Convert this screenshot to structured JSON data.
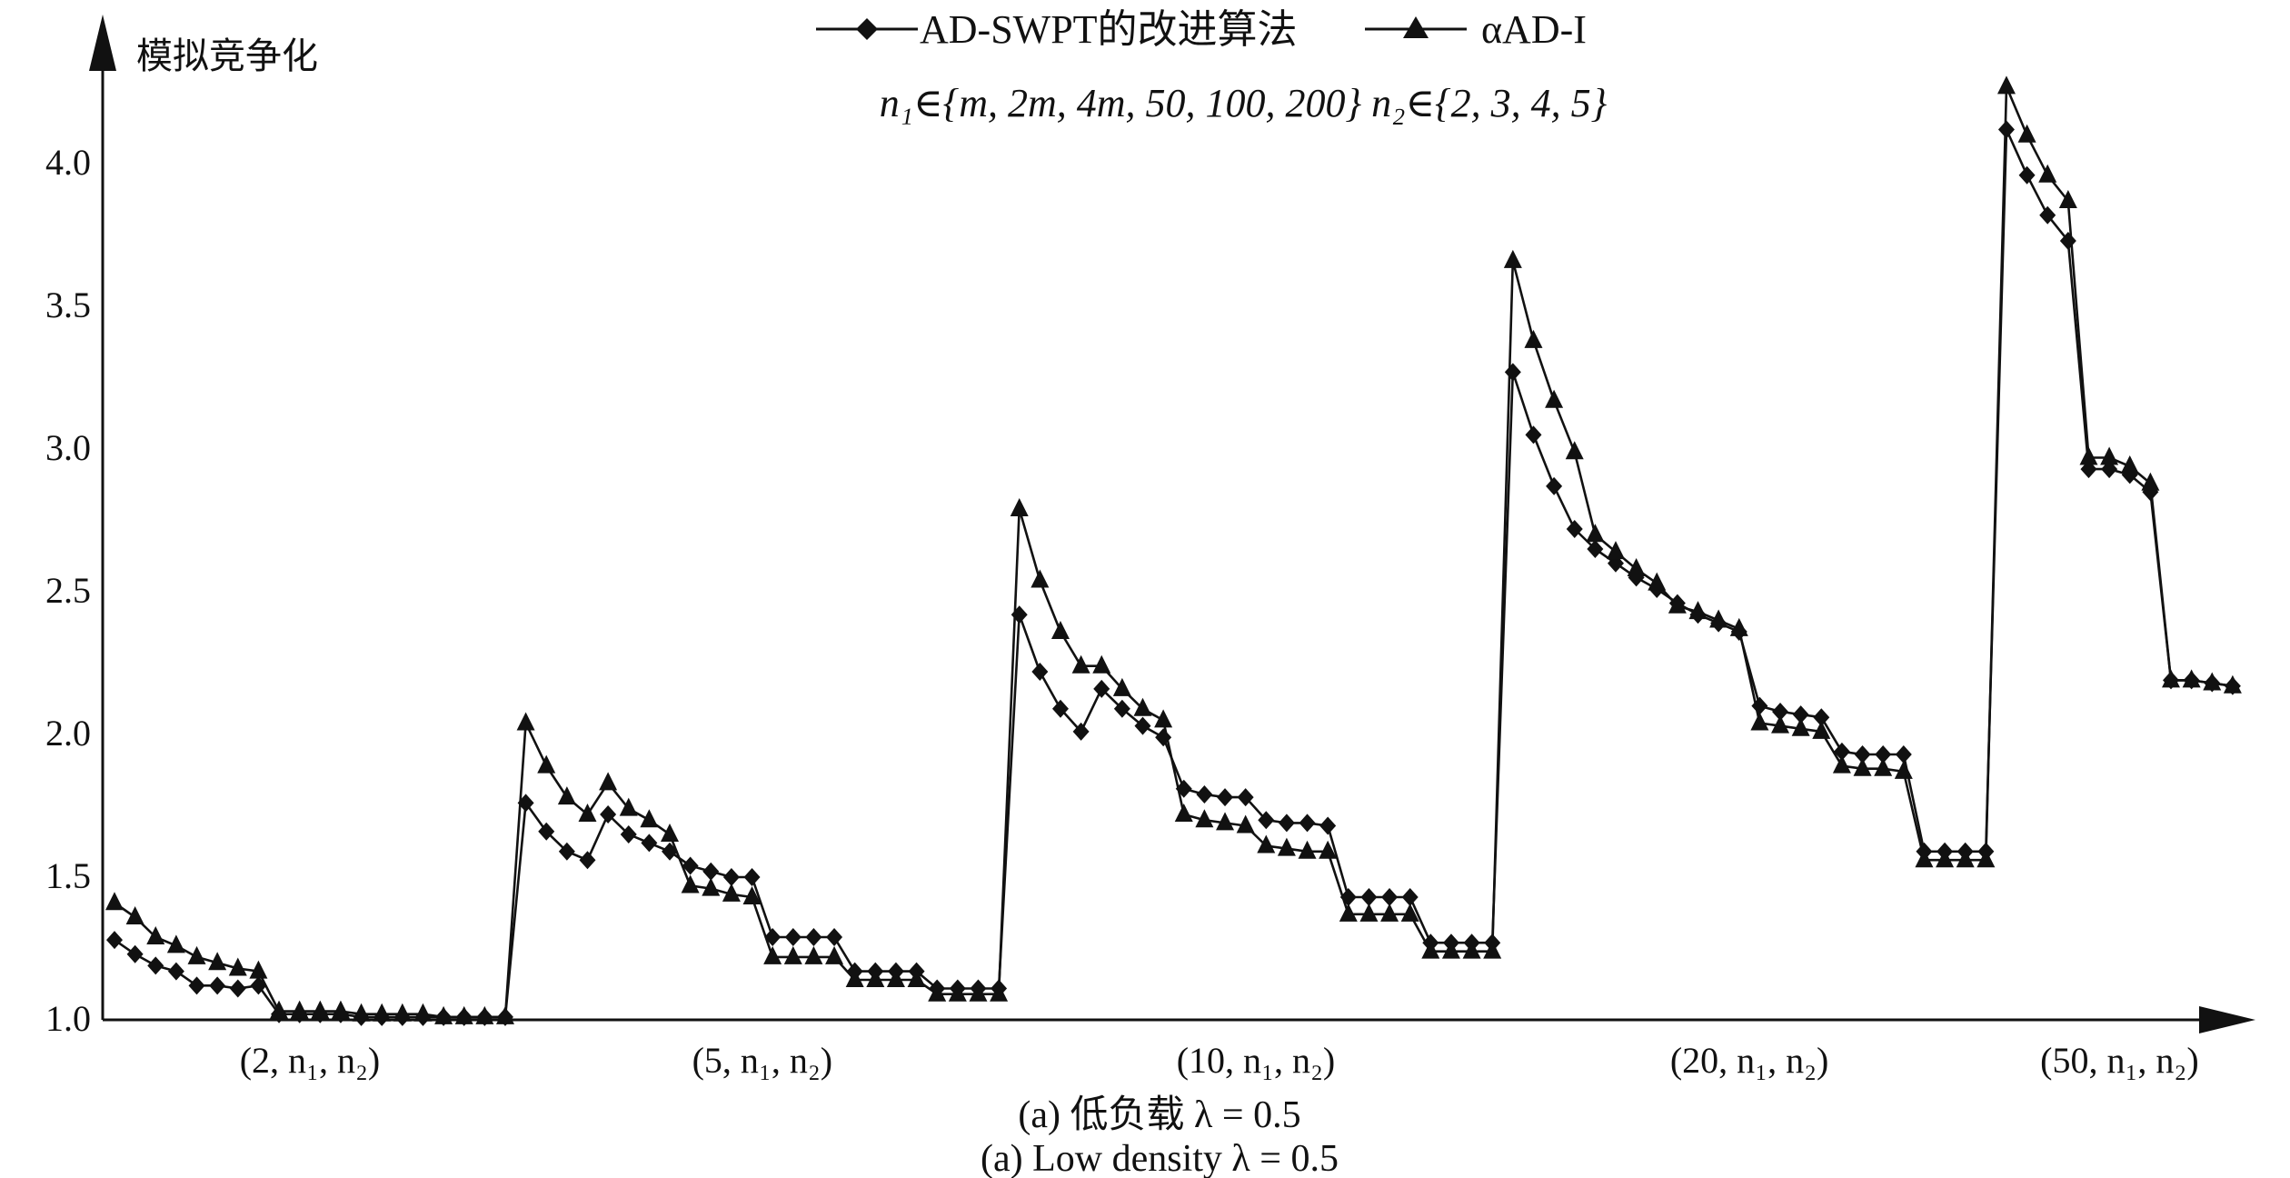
{
  "chart_data": {
    "type": "line",
    "ylabel": "模拟竞争化",
    "subtitle": "n₁∈{m, 2m, 4m, 50, 100, 200}   n₂∈{2, 3, 4, 5}",
    "caption_cn": "(a) 低负载 λ = 0.5",
    "caption_en": "(a) Low density λ = 0.5",
    "ylim": [
      1.0,
      4.3
    ],
    "yticks": [
      "1.0",
      "1.5",
      "2.0",
      "2.5",
      "3.0",
      "3.5",
      "4.0"
    ],
    "categories": [
      "(2, n₁, n₂)",
      "(5, n₁, n₂)",
      "(10, n₁, n₂)",
      "(20, n₁, n₂)",
      "(50, n₁, n₂)"
    ],
    "legend_position": "top-center",
    "grid": false,
    "series": [
      {
        "name": "AD-SWPT的改进算法",
        "marker": "diamond",
        "values": [
          [
            1.28,
            1.23,
            1.19,
            1.17,
            1.12,
            1.12,
            1.11,
            1.12,
            1.02,
            1.02,
            1.02,
            1.02,
            1.01,
            1.01,
            1.01,
            1.01,
            1.01,
            1.01,
            1.01,
            1.01
          ],
          [
            1.76,
            1.66,
            1.59,
            1.56,
            1.72,
            1.65,
            1.62,
            1.59,
            1.54,
            1.52,
            1.5,
            1.5,
            1.29,
            1.29,
            1.29,
            1.29,
            1.17,
            1.17,
            1.17,
            1.17,
            1.11,
            1.11,
            1.11,
            1.11
          ],
          [
            2.42,
            2.22,
            2.09,
            2.01,
            2.16,
            2.09,
            2.03,
            1.99,
            1.81,
            1.79,
            1.78,
            1.78,
            1.7,
            1.69,
            1.69,
            1.68,
            1.43,
            1.43,
            1.43,
            1.43,
            1.27,
            1.27,
            1.27,
            1.27
          ],
          [
            3.27,
            3.05,
            2.87,
            2.72,
            2.65,
            2.6,
            2.55,
            2.51,
            2.46,
            2.42,
            2.39,
            2.36,
            2.1,
            2.08,
            2.07,
            2.06,
            1.94,
            1.93,
            1.93,
            1.93,
            1.59,
            1.59,
            1.59,
            1.59
          ],
          [
            4.12,
            3.96,
            3.82,
            3.73,
            2.93,
            2.93,
            2.91,
            2.85,
            2.19,
            2.19,
            2.18,
            2.17
          ]
        ]
      },
      {
        "name": "αAD-I",
        "marker": "triangle",
        "values": [
          [
            1.41,
            1.36,
            1.29,
            1.26,
            1.22,
            1.2,
            1.18,
            1.17,
            1.03,
            1.03,
            1.03,
            1.03,
            1.02,
            1.02,
            1.02,
            1.02,
            1.01,
            1.01,
            1.01,
            1.01
          ],
          [
            2.04,
            1.89,
            1.78,
            1.72,
            1.83,
            1.74,
            1.7,
            1.65,
            1.47,
            1.46,
            1.44,
            1.43,
            1.22,
            1.22,
            1.22,
            1.22,
            1.14,
            1.14,
            1.14,
            1.14,
            1.09,
            1.09,
            1.09,
            1.09
          ],
          [
            2.79,
            2.54,
            2.36,
            2.24,
            2.24,
            2.16,
            2.09,
            2.05,
            1.72,
            1.7,
            1.69,
            1.68,
            1.61,
            1.6,
            1.59,
            1.59,
            1.37,
            1.37,
            1.37,
            1.37,
            1.24,
            1.24,
            1.24,
            1.24
          ],
          [
            3.66,
            3.38,
            3.17,
            2.99,
            2.7,
            2.64,
            2.58,
            2.53,
            2.45,
            2.43,
            2.4,
            2.37,
            2.04,
            2.03,
            2.02,
            2.01,
            1.89,
            1.88,
            1.88,
            1.87,
            1.56,
            1.56,
            1.56,
            1.56
          ],
          [
            4.27,
            4.1,
            3.96,
            3.87,
            2.97,
            2.97,
            2.94,
            2.88,
            2.19,
            2.19,
            2.18,
            2.17
          ]
        ]
      }
    ]
  }
}
